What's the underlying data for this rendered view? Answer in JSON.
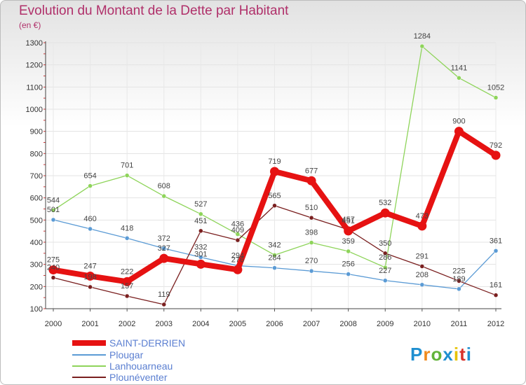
{
  "chart": {
    "title": "Evolution du Montant de la Dette par Habitant",
    "unit_label": "(en €)",
    "brand_letters": [
      "P",
      "r",
      "o",
      "x",
      "i",
      "t",
      "i"
    ],
    "brand_colors": [
      "#1f8fd0",
      "#f08a1c",
      "#62b33a",
      "#1f8fd0",
      "#e6c200",
      "#d8322b",
      "#1f8fd0"
    ]
  },
  "chart_data": {
    "type": "line",
    "title": "Evolution du Montant de la Dette par Habitant",
    "ylabel": "(en €)",
    "x": [
      "2000",
      "2001",
      "2002",
      "2003",
      "2004",
      "2005",
      "2006",
      "2007",
      "2008",
      "2009",
      "2010",
      "2011",
      "2012"
    ],
    "ylim": [
      100,
      1300
    ],
    "yticks": [
      100,
      200,
      300,
      400,
      500,
      600,
      700,
      800,
      900,
      1000,
      1100,
      1200,
      1300
    ],
    "grid": true,
    "legend": "bottom-left",
    "series": [
      {
        "name": "SAINT-DERRIEN",
        "color": "#e61212",
        "values": [
          275,
          247,
          222,
          327,
          301,
          276,
          719,
          677,
          451,
          532,
          473,
          900,
          792
        ],
        "labels": [
          "275",
          "247",
          "222",
          "327",
          "301",
          "276",
          "719",
          "677",
          "451",
          "532",
          "473",
          "900",
          "792"
        ]
      },
      {
        "name": "Plougar",
        "color": "#5b9bd5",
        "values": [
          501,
          460,
          418,
          372,
          332,
          294,
          284,
          270,
          256,
          227,
          208,
          189,
          361
        ],
        "labels": [
          "501",
          "460",
          "418",
          "372",
          "332",
          "294",
          "284",
          "270",
          "256",
          "227",
          "208",
          "189",
          "361"
        ]
      },
      {
        "name": "Lanhouarneau",
        "color": "#8ed45a",
        "values": [
          544,
          654,
          701,
          608,
          527,
          436,
          342,
          398,
          359,
          286,
          1284,
          1141,
          1052
        ],
        "labels": [
          "544",
          "654",
          "701",
          "608",
          "527",
          "436",
          "342",
          "398",
          "359",
          "286",
          "1284",
          "1141",
          "1052"
        ]
      },
      {
        "name": "Plounéventer",
        "color": "#7a1f1f",
        "values": [
          240,
          198,
          157,
          119,
          451,
          409,
          565,
          510,
          457,
          350,
          291,
          225,
          161
        ],
        "labels": [
          "240",
          "198",
          "157",
          "119",
          "451",
          "409",
          "565",
          "510",
          "457",
          "350",
          "291",
          "225",
          "161"
        ]
      }
    ]
  }
}
